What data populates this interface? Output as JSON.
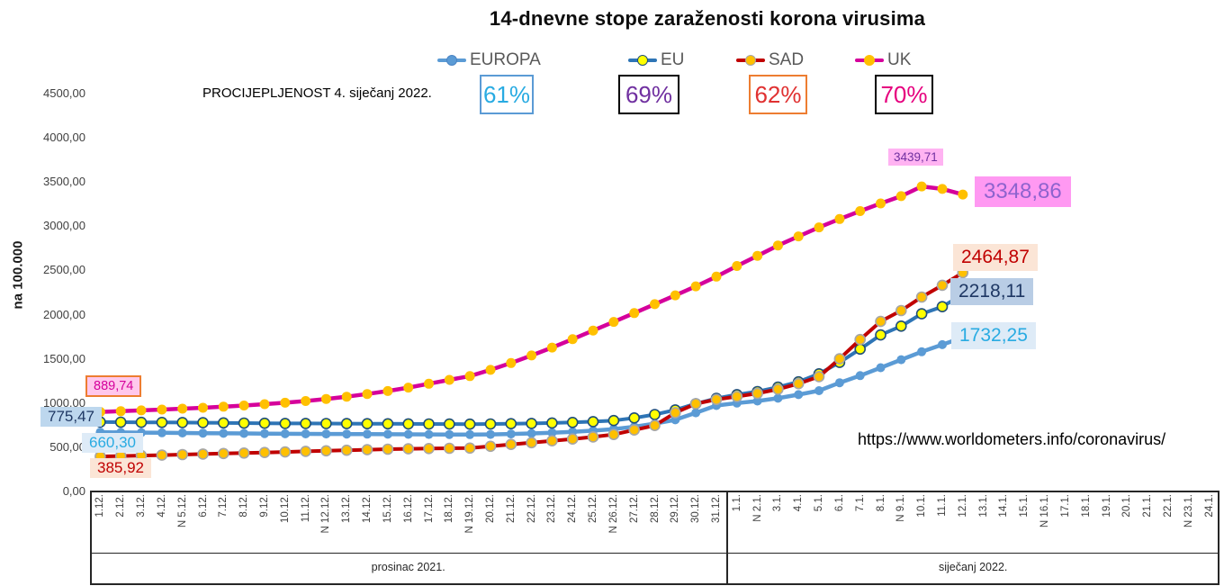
{
  "title": "14-dnevne stope zaraženosti korona virusima",
  "vaccination_note": "PROCIJEPLJENOST 4. siječanj 2022.",
  "source_url": "https://www.worldometers.info/coronavirus/",
  "legend": {
    "items": [
      {
        "label": "EUROPA",
        "percent": "61%",
        "line_color": "#5B9BD5",
        "marker_fill": "#5B9BD5",
        "marker_stroke": "#4A84C4",
        "percent_color": "#29ABE2",
        "box_border": "#5B9BD5"
      },
      {
        "label": "EU",
        "percent": "69%",
        "line_color": "#2E75B6",
        "marker_fill": "#FFFF00",
        "marker_stroke": "#1F4E79",
        "percent_color": "#7030A0",
        "box_border": "#000000"
      },
      {
        "label": "SAD",
        "percent": "62%",
        "line_color": "#C00000",
        "marker_fill": "#FFC000",
        "marker_stroke": "#A6A6A6",
        "percent_color": "#E03131",
        "box_border": "#ED7D31"
      },
      {
        "label": "UK",
        "percent": "70%",
        "line_color": "#D5009B",
        "marker_fill": "#FFC000",
        "marker_stroke": "#FFC000",
        "percent_color": "#E6007E",
        "box_border": "#000000"
      }
    ]
  },
  "chart_data": {
    "type": "line",
    "title": "14-dnevne stope zaraženosti korona virusima",
    "xlabel": "",
    "ylabel": "na 100.000",
    "ylim": [
      0,
      4500
    ],
    "y_tick_step": 500,
    "grid": false,
    "legend_position": "top",
    "y_tick_labels": [
      "0,00",
      "500,00",
      "1000,00",
      "1500,00",
      "2000,00",
      "2500,00",
      "3000,00",
      "3500,00",
      "4000,00",
      "4500,00"
    ],
    "x_tick_labels": [
      "1.12.",
      "2.12.",
      "3.12.",
      "4.12.",
      "N 5.12.",
      "6.12.",
      "7.12.",
      "8.12.",
      "9.12.",
      "10.12.",
      "11.12.",
      "N 12.12.",
      "13.12.",
      "14.12.",
      "15.12.",
      "16.12.",
      "17.12.",
      "18.12.",
      "N 19.12.",
      "20.12.",
      "21.12.",
      "22.12.",
      "23.12.",
      "24.12.",
      "25.12.",
      "N 26.12.",
      "27.12.",
      "28.12.",
      "29.12.",
      "30.12.",
      "31.12.",
      "1.1.",
      "N 2.1.",
      "3.1.",
      "4.1.",
      "5.1.",
      "6.1.",
      "7.1.",
      "8.1.",
      "N 9.1.",
      "10.1.",
      "11.1.",
      "12.1.",
      "13.1.",
      "14.1.",
      "15.1.",
      "N 16.1.",
      "17.1.",
      "18.1.",
      "19.1.",
      "20.1.",
      "21.1.",
      "22.1.",
      "N 23.1.",
      "24.1."
    ],
    "month_bands": [
      {
        "label": "prosinac 2021.",
        "from": 0,
        "to": 30
      },
      {
        "label": "siječanj 2022.",
        "from": 31,
        "to": 54
      }
    ],
    "dates": [
      "1.12.",
      "2.12.",
      "3.12.",
      "4.12.",
      "5.12.",
      "6.12.",
      "7.12.",
      "8.12.",
      "9.12.",
      "10.12.",
      "11.12.",
      "12.12.",
      "13.12.",
      "14.12.",
      "15.12.",
      "16.12.",
      "17.12.",
      "18.12.",
      "19.12.",
      "20.12.",
      "21.12.",
      "22.12.",
      "23.12.",
      "24.12.",
      "25.12.",
      "26.12.",
      "27.12.",
      "28.12.",
      "29.12.",
      "30.12.",
      "31.12.",
      "1.1.",
      "2.1.",
      "3.1.",
      "4.1.",
      "5.1.",
      "6.1.",
      "7.1.",
      "8.1.",
      "9.1.",
      "10.1.",
      "11.1.",
      "12.1."
    ],
    "series": [
      {
        "name": "EUROPA",
        "first_value": 660.3,
        "last_value": 1732.25,
        "values": [
          660.3,
          658,
          656,
          654,
          652,
          650,
          648,
          646,
          644,
          642,
          641,
          640,
          639,
          638,
          637,
          636,
          635,
          634,
          633,
          635,
          640,
          647,
          655,
          665,
          678,
          695,
          722,
          757,
          800,
          880,
          962,
          990,
          1013,
          1045,
          1085,
          1130,
          1220,
          1300,
          1390,
          1480,
          1570,
          1650,
          1732.25
        ]
      },
      {
        "name": "EU",
        "first_value": 775.47,
        "last_value": 2218.11,
        "values": [
          775.47,
          774,
          772,
          771,
          770,
          768,
          766,
          764,
          762,
          760,
          759,
          758,
          757,
          756,
          755,
          754,
          753,
          752,
          751,
          753,
          756,
          760,
          765,
          771,
          780,
          792,
          822,
          860,
          912,
          982,
          1043,
          1085,
          1120,
          1170,
          1230,
          1320,
          1450,
          1600,
          1760,
          1860,
          2000,
          2080,
          2218.11
        ]
      },
      {
        "name": "SAD",
        "first_value": 385.92,
        "last_value": 2464.87,
        "values": [
          385.92,
          391,
          396,
          401,
          407,
          413,
          419,
          425,
          431,
          437,
          444,
          450,
          456,
          462,
          468,
          472,
          475,
          478,
          481,
          501,
          522,
          542,
          563,
          583,
          607,
          634,
          685,
          736,
          880,
          982,
          1030,
          1064,
          1100,
          1146,
          1210,
          1289,
          1490,
          1708,
          1913,
          2036,
          2189,
          2322,
          2464.87
        ]
      },
      {
        "name": "UK",
        "first_value": 889.74,
        "peak_value": 3439.71,
        "last_value": 3348.86,
        "values": [
          889.74,
          898,
          907,
          916,
          926,
          937,
          949,
          962,
          977,
          994,
          1013,
          1036,
          1062,
          1092,
          1126,
          1165,
          1208,
          1252,
          1295,
          1365,
          1443,
          1528,
          1618,
          1712,
          1810,
          1908,
          2008,
          2108,
          2208,
          2310,
          2420,
          2540,
          2655,
          2772,
          2875,
          2977,
          3072,
          3161,
          3248,
          3330,
          3439.71,
          3412,
          3348.86
        ]
      }
    ],
    "labels": {
      "uk_start": {
        "text": "889,74",
        "fg": "#D5009B",
        "bg": "#FFC7EC",
        "border": "#ED7D31"
      },
      "eu_start": {
        "text": "775,47",
        "fg": "#1F3864",
        "bg": "#BDD7EE"
      },
      "europa_start": {
        "text": "660,30",
        "fg": "#29ABE2",
        "bg": "#DEEBF7"
      },
      "sad_start": {
        "text": "385,92",
        "fg": "#C00000",
        "bg": "#FBE5D6"
      },
      "uk_peak": {
        "text": "3439,71",
        "fg": "#7030A0",
        "bg": "#FFB3F2"
      },
      "uk_end": {
        "text": "3348,86",
        "fg": "#8E63CE",
        "bg": "#FF99F2"
      },
      "sad_end": {
        "text": "2464,87",
        "fg": "#C00000",
        "bg": "#FBE5D6"
      },
      "eu_end": {
        "text": "2218,11",
        "fg": "#1F3864",
        "bg": "#B9CDE5"
      },
      "europa_end": {
        "text": "1732,25",
        "fg": "#29ABE2",
        "bg": "#DEEBF7"
      }
    }
  }
}
